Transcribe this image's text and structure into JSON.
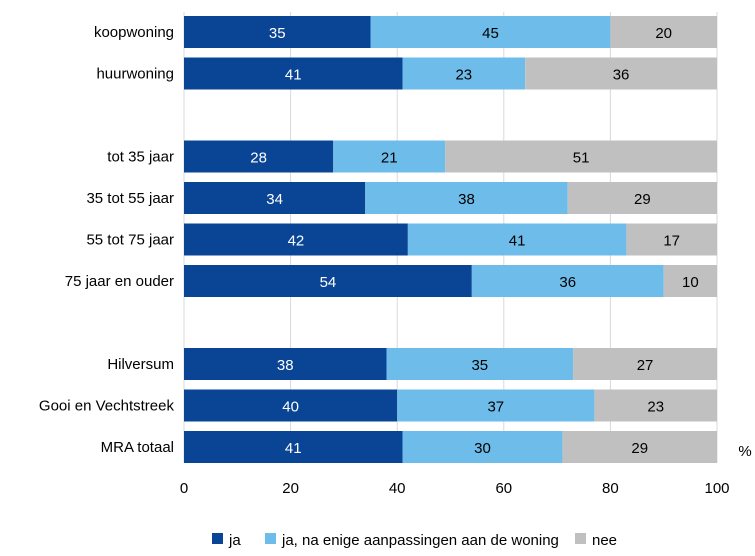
{
  "chart_data": {
    "type": "bar",
    "orientation": "horizontal",
    "stacked": true,
    "categories": [
      "koopwoning",
      "huurwoning",
      "",
      "tot 35 jaar",
      "35 tot 55 jaar",
      "55 tot 75 jaar",
      "75 jaar en ouder",
      "",
      "Hilversum",
      "Gooi en Vechtstreek",
      "MRA totaal"
    ],
    "series": [
      {
        "name": "ja",
        "color": "#0a4595",
        "values": [
          35,
          41,
          null,
          28,
          34,
          42,
          54,
          null,
          38,
          40,
          41
        ]
      },
      {
        "name": "ja, na enige aanpassingen aan de woning",
        "color": "#6ebcea",
        "values": [
          45,
          23,
          null,
          21,
          38,
          41,
          36,
          null,
          35,
          37,
          30
        ]
      },
      {
        "name": "nee",
        "color": "#c0c0c0",
        "values": [
          20,
          36,
          null,
          51,
          29,
          17,
          10,
          null,
          27,
          23,
          29
        ]
      }
    ],
    "xlim": [
      0,
      100
    ],
    "xticks": [
      "0",
      "20",
      "40",
      "60",
      "80",
      "100"
    ],
    "xunit": "%",
    "grid": true,
    "legend_position": "bottom"
  }
}
